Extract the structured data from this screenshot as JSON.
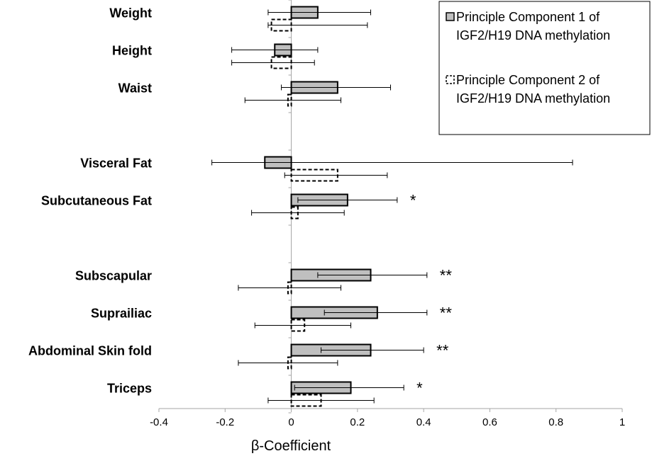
{
  "chart_data": {
    "type": "bar",
    "orientation": "horizontal",
    "xlabel": "β-Coefficient",
    "xlim": [
      -0.4,
      1
    ],
    "xticks": [
      -0.4,
      -0.2,
      0,
      0.2,
      0.4,
      0.6,
      0.8,
      1
    ],
    "xtick_labels": [
      "-0.4",
      "-0.2",
      "0",
      "0.2",
      "0.4",
      "0.6",
      "0.8",
      "1"
    ],
    "legend_position": "top-right",
    "colors": {
      "pc1_fill": "#bfbfbf",
      "pc1_stroke": "#000000",
      "pc2_stroke": "#000000"
    },
    "categories": [
      {
        "label": "Weight",
        "slot": 0,
        "pc1": {
          "value": 0.08,
          "ci": [
            -0.07,
            0.24
          ]
        },
        "pc2": {
          "value": -0.06,
          "ci": [
            -0.07,
            0.23
          ]
        },
        "sig": ""
      },
      {
        "label": "Height",
        "slot": 1,
        "pc1": {
          "value": -0.05,
          "ci": [
            -0.18,
            0.08
          ]
        },
        "pc2": {
          "value": -0.06,
          "ci": [
            -0.18,
            0.07
          ]
        },
        "sig": ""
      },
      {
        "label": "Waist",
        "slot": 2,
        "pc1": {
          "value": 0.14,
          "ci": [
            -0.03,
            0.3
          ]
        },
        "pc2": {
          "value": -0.01,
          "ci": [
            -0.14,
            0.15
          ]
        },
        "sig": ""
      },
      {
        "label": "Visceral Fat",
        "slot": 4,
        "pc1": {
          "value": -0.08,
          "ci": [
            -0.24,
            0.85
          ]
        },
        "pc2": {
          "value": 0.14,
          "ci": [
            -0.02,
            0.29
          ]
        },
        "sig": ""
      },
      {
        "label": "Subcutaneous Fat",
        "slot": 5,
        "pc1": {
          "value": 0.17,
          "ci": [
            0.02,
            0.32
          ]
        },
        "pc2": {
          "value": 0.02,
          "ci": [
            -0.12,
            0.16
          ]
        },
        "sig": "*"
      },
      {
        "label": "Subscapular",
        "slot": 7,
        "pc1": {
          "value": 0.24,
          "ci": [
            0.08,
            0.41
          ]
        },
        "pc2": {
          "value": -0.01,
          "ci": [
            -0.16,
            0.15
          ]
        },
        "sig": "**"
      },
      {
        "label": "Suprailiac",
        "slot": 8,
        "pc1": {
          "value": 0.26,
          "ci": [
            0.1,
            0.41
          ]
        },
        "pc2": {
          "value": 0.04,
          "ci": [
            -0.11,
            0.18
          ]
        },
        "sig": "**"
      },
      {
        "label": "Abdominal Skin fold",
        "slot": 9,
        "pc1": {
          "value": 0.24,
          "ci": [
            0.09,
            0.4
          ]
        },
        "pc2": {
          "value": -0.01,
          "ci": [
            -0.16,
            0.14
          ]
        },
        "sig": "**"
      },
      {
        "label": "Triceps",
        "slot": 10,
        "pc1": {
          "value": 0.18,
          "ci": [
            0.01,
            0.34
          ]
        },
        "pc2": {
          "value": 0.09,
          "ci": [
            -0.07,
            0.25
          ]
        },
        "sig": "*"
      }
    ],
    "series": [
      {
        "key": "pc1",
        "name_lines": [
          "Principle Component 1 of",
          "IGF2/H19 DNA methylation"
        ]
      },
      {
        "key": "pc2",
        "name_lines": [
          "Principle Component 2 of",
          "IGF2/H19 DNA methylation"
        ]
      }
    ]
  }
}
